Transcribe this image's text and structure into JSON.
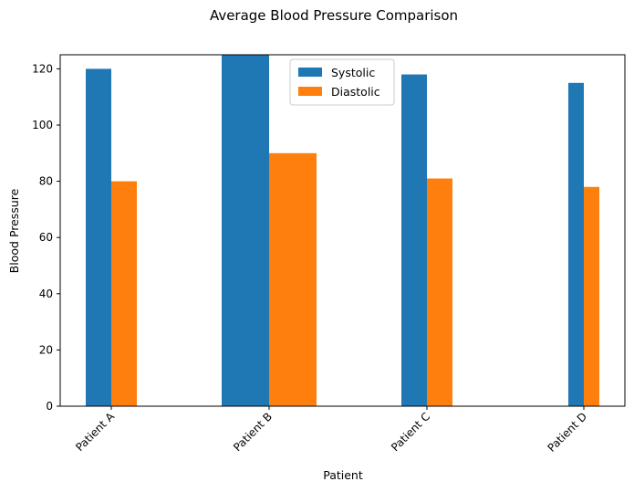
{
  "chart_data": {
    "type": "bar",
    "title": "Average Blood Pressure Comparison",
    "xlabel": "Patient",
    "ylabel": "Blood Pressure",
    "categories": [
      "Patient A",
      "Patient B",
      "Patient C",
      "Patient D"
    ],
    "series": [
      {
        "name": "Systolic",
        "color": "#1f77b4",
        "values": [
          120,
          125,
          118,
          115
        ]
      },
      {
        "name": "Diastolic",
        "color": "#ff7f0e",
        "values": [
          80,
          90,
          81,
          78
        ]
      }
    ],
    "ylim": [
      0,
      125
    ],
    "yticks": [
      0,
      20,
      40,
      60,
      80,
      100,
      120
    ],
    "grid": false,
    "legend_position": "top-center"
  }
}
